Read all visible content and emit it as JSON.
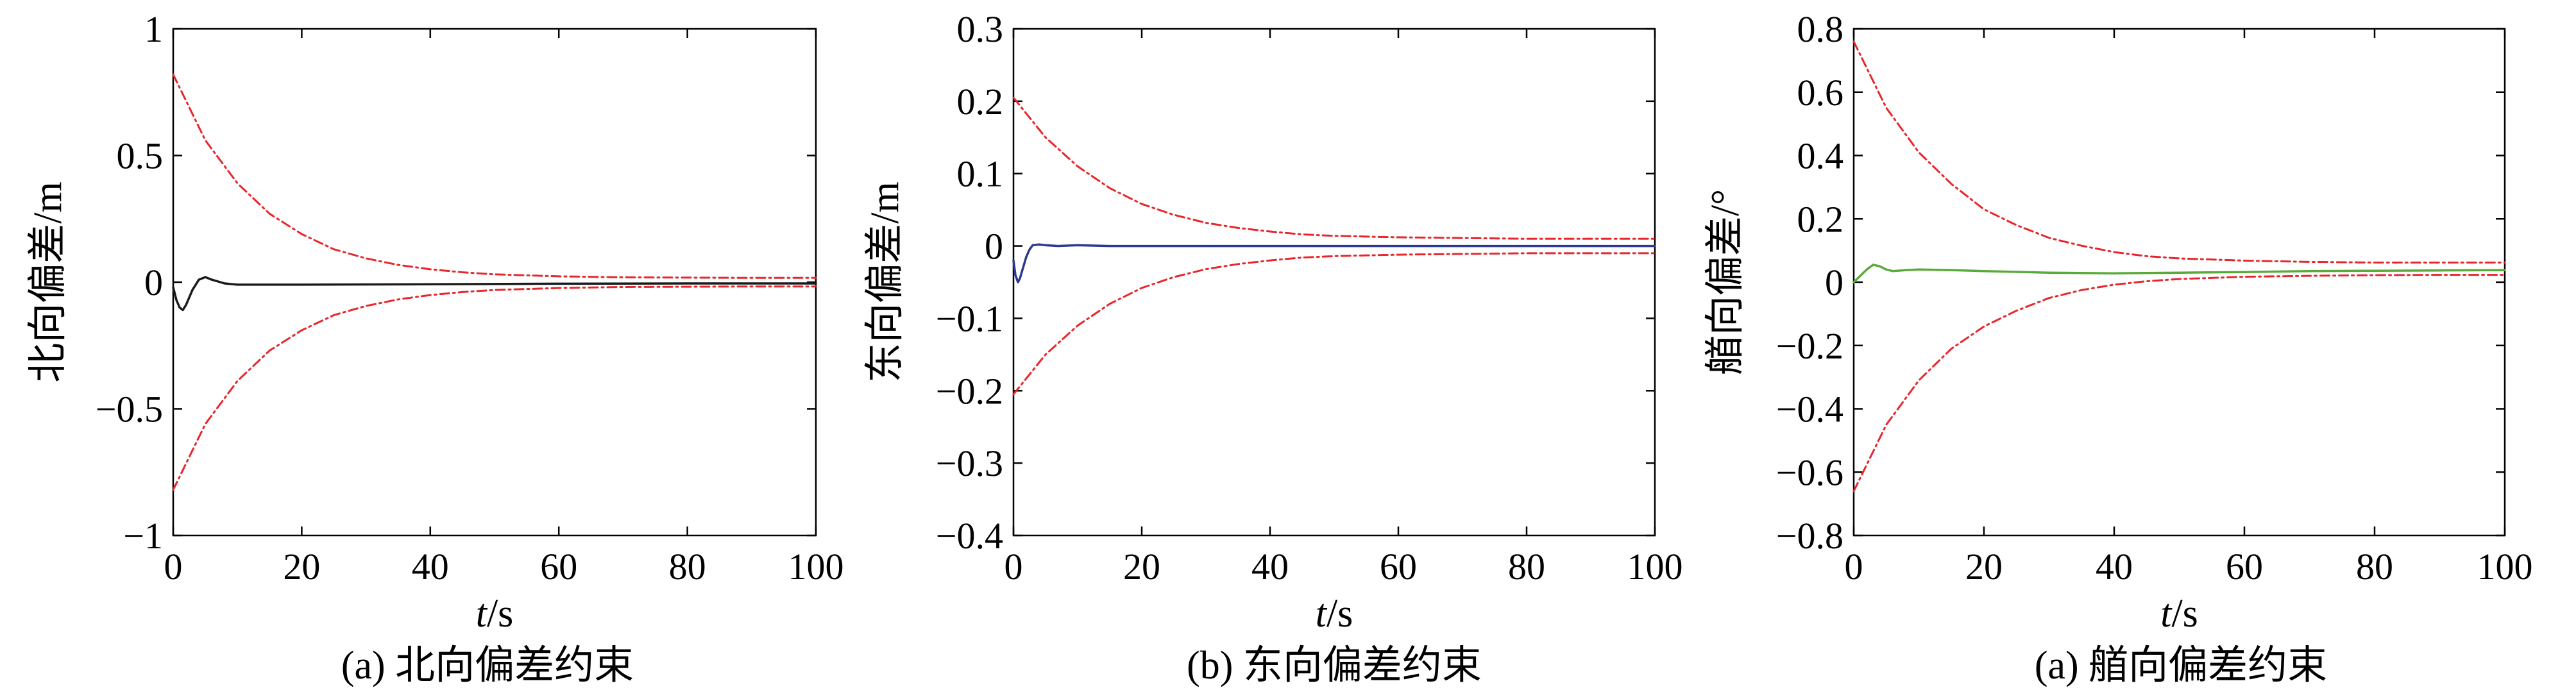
{
  "chart_data": [
    {
      "type": "line",
      "caption": "(a) 北向偏差约束",
      "xlabel_italic": "t",
      "xlabel_rest": "/s",
      "ylabel": "北向偏差/m",
      "xlim": [
        0,
        100
      ],
      "ylim": [
        -1,
        1
      ],
      "xticks": [
        0,
        20,
        40,
        60,
        80,
        100
      ],
      "xtick_labels": [
        "0",
        "20",
        "40",
        "60",
        "80",
        "100"
      ],
      "yticks": [
        1,
        0.5,
        0,
        -0.5,
        -1
      ],
      "ytick_labels": [
        "1",
        "0.5",
        "0",
        "−0.5",
        "−1"
      ],
      "grid": false,
      "series": [
        {
          "role": "upper-bound",
          "color": "#e8262b",
          "style": "dashdot",
          "x": [
            0,
            5,
            10,
            15,
            20,
            25,
            30,
            35,
            40,
            45,
            50,
            60,
            70,
            80,
            90,
            100
          ],
          "y": [
            0.82,
            0.56,
            0.39,
            0.27,
            0.19,
            0.13,
            0.094,
            0.068,
            0.051,
            0.039,
            0.031,
            0.023,
            0.019,
            0.018,
            0.017,
            0.017
          ]
        },
        {
          "role": "lower-bound",
          "color": "#e8262b",
          "style": "dashdot",
          "x": [
            0,
            5,
            10,
            15,
            20,
            25,
            30,
            35,
            40,
            45,
            50,
            60,
            70,
            80,
            90,
            100
          ],
          "y": [
            -0.82,
            -0.56,
            -0.39,
            -0.27,
            -0.19,
            -0.13,
            -0.094,
            -0.068,
            -0.051,
            -0.039,
            -0.031,
            -0.023,
            -0.019,
            -0.018,
            -0.017,
            -0.017
          ]
        },
        {
          "role": "error",
          "color": "#1a1a1a",
          "style": "solid",
          "x": [
            0,
            0.5,
            1,
            1.5,
            2,
            3,
            4,
            5,
            6,
            8,
            10,
            15,
            20,
            40,
            60,
            80,
            100
          ],
          "y": [
            -0.02,
            -0.07,
            -0.1,
            -0.11,
            -0.09,
            -0.03,
            0.01,
            0.02,
            0.01,
            -0.005,
            -0.01,
            -0.01,
            -0.01,
            -0.008,
            -0.006,
            -0.005,
            -0.005
          ]
        }
      ]
    },
    {
      "type": "line",
      "caption": "(b) 东向偏差约束",
      "xlabel_italic": "t",
      "xlabel_rest": "/s",
      "ylabel": "东向偏差/m",
      "xlim": [
        0,
        100
      ],
      "ylim": [
        -0.4,
        0.3
      ],
      "xticks": [
        0,
        20,
        40,
        60,
        80,
        100
      ],
      "xtick_labels": [
        "0",
        "20",
        "40",
        "60",
        "80",
        "100"
      ],
      "yticks": [
        0.3,
        0.2,
        0.1,
        0,
        -0.1,
        -0.2,
        -0.3,
        -0.4
      ],
      "ytick_labels": [
        "0.3",
        "0.2",
        "0.1",
        "0",
        "−0.1",
        "−0.2",
        "−0.3",
        "−0.4"
      ],
      "grid": false,
      "series": [
        {
          "role": "upper-bound",
          "color": "#e8262b",
          "style": "dashdot",
          "x": [
            0,
            5,
            10,
            15,
            20,
            25,
            30,
            35,
            40,
            45,
            50,
            60,
            70,
            80,
            90,
            100
          ],
          "y": [
            0.205,
            0.15,
            0.11,
            0.08,
            0.058,
            0.043,
            0.032,
            0.025,
            0.02,
            0.016,
            0.014,
            0.012,
            0.011,
            0.01,
            0.01,
            0.01
          ]
        },
        {
          "role": "lower-bound",
          "color": "#e8262b",
          "style": "dashdot",
          "x": [
            0,
            5,
            10,
            15,
            20,
            25,
            30,
            35,
            40,
            45,
            50,
            60,
            70,
            80,
            90,
            100
          ],
          "y": [
            -0.205,
            -0.15,
            -0.11,
            -0.08,
            -0.058,
            -0.043,
            -0.032,
            -0.025,
            -0.02,
            -0.016,
            -0.014,
            -0.012,
            -0.011,
            -0.01,
            -0.01,
            -0.01
          ]
        },
        {
          "role": "error",
          "color": "#2b3a8f",
          "style": "solid",
          "x": [
            0,
            0.3,
            0.7,
            1,
            1.5,
            2,
            2.5,
            3,
            4,
            5,
            7,
            10,
            15,
            20,
            40,
            60,
            80,
            100
          ],
          "y": [
            -0.02,
            -0.04,
            -0.05,
            -0.045,
            -0.03,
            -0.015,
            -0.005,
            0.001,
            0.002,
            0.001,
            0.0,
            0.001,
            0.0,
            0.0,
            0.0,
            0.0,
            0.0,
            0.0
          ]
        }
      ]
    },
    {
      "type": "line",
      "caption": "(a) 艏向偏差约束",
      "xlabel_italic": "t",
      "xlabel_rest": "/s",
      "ylabel": "艏向偏差/°",
      "xlim": [
        0,
        100
      ],
      "ylim": [
        -0.8,
        0.8
      ],
      "xticks": [
        0,
        20,
        40,
        60,
        80,
        100
      ],
      "xtick_labels": [
        "0",
        "20",
        "40",
        "60",
        "80",
        "100"
      ],
      "yticks": [
        0.8,
        0.6,
        0.4,
        0.2,
        0,
        -0.2,
        -0.4,
        -0.6,
        -0.8
      ],
      "ytick_labels": [
        "0.8",
        "0.6",
        "0.4",
        "0.2",
        "0",
        "−0.2",
        "−0.4",
        "−0.6",
        "−0.8"
      ],
      "grid": false,
      "series": [
        {
          "role": "upper-bound",
          "color": "#e8262b",
          "style": "dashdot",
          "x": [
            0,
            5,
            10,
            15,
            20,
            25,
            30,
            35,
            40,
            45,
            50,
            60,
            70,
            80,
            90,
            100
          ],
          "y": [
            0.76,
            0.55,
            0.41,
            0.31,
            0.23,
            0.18,
            0.14,
            0.115,
            0.095,
            0.082,
            0.075,
            0.068,
            0.064,
            0.062,
            0.062,
            0.062
          ]
        },
        {
          "role": "lower-bound",
          "color": "#e8262b",
          "style": "dashdot",
          "x": [
            0,
            5,
            10,
            15,
            20,
            25,
            30,
            35,
            40,
            45,
            50,
            60,
            70,
            80,
            90,
            100
          ],
          "y": [
            -0.66,
            -0.45,
            -0.31,
            -0.21,
            -0.14,
            -0.09,
            -0.05,
            -0.025,
            -0.008,
            0.003,
            0.01,
            0.017,
            0.02,
            0.022,
            0.023,
            0.023
          ]
        },
        {
          "role": "error",
          "color": "#5aaa3a",
          "style": "solid",
          "x": [
            0,
            1,
            2,
            3,
            4,
            5,
            6,
            8,
            10,
            15,
            20,
            30,
            40,
            50,
            60,
            70,
            80,
            90,
            100
          ],
          "y": [
            0.0,
            0.02,
            0.04,
            0.055,
            0.05,
            0.04,
            0.035,
            0.038,
            0.04,
            0.038,
            0.035,
            0.03,
            0.028,
            0.03,
            0.032,
            0.035,
            0.036,
            0.037,
            0.038
          ]
        }
      ]
    }
  ]
}
